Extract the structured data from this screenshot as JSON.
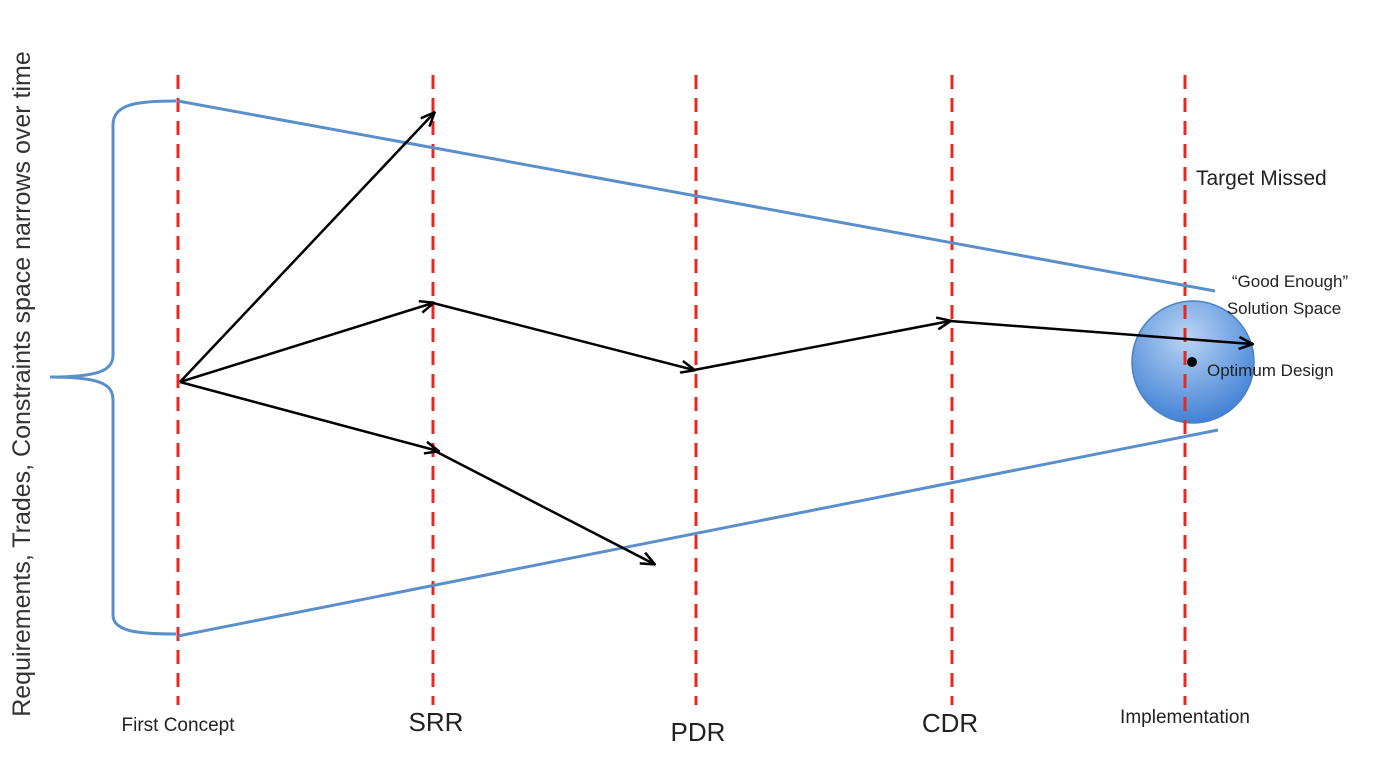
{
  "y_axis_label": "Requirements, Trades, Constraints space narrows over time",
  "milestones": [
    {
      "label": "First Concept"
    },
    {
      "label": "SRR"
    },
    {
      "label": "PDR"
    },
    {
      "label": "CDR"
    },
    {
      "label": "Implementation"
    }
  ],
  "annotations": {
    "target_missed": "Target Missed",
    "good_enough_line1": "“Good Enough”",
    "good_enough_line2": "Solution Space",
    "optimum_design": "Optimum Design"
  },
  "colors": {
    "milestone_line": "#e8271f",
    "boundary": "#5b8fcc",
    "path": "#000000",
    "solution_fill_light": "#a8c8f0",
    "solution_fill_dark": "#3d7fd6"
  }
}
